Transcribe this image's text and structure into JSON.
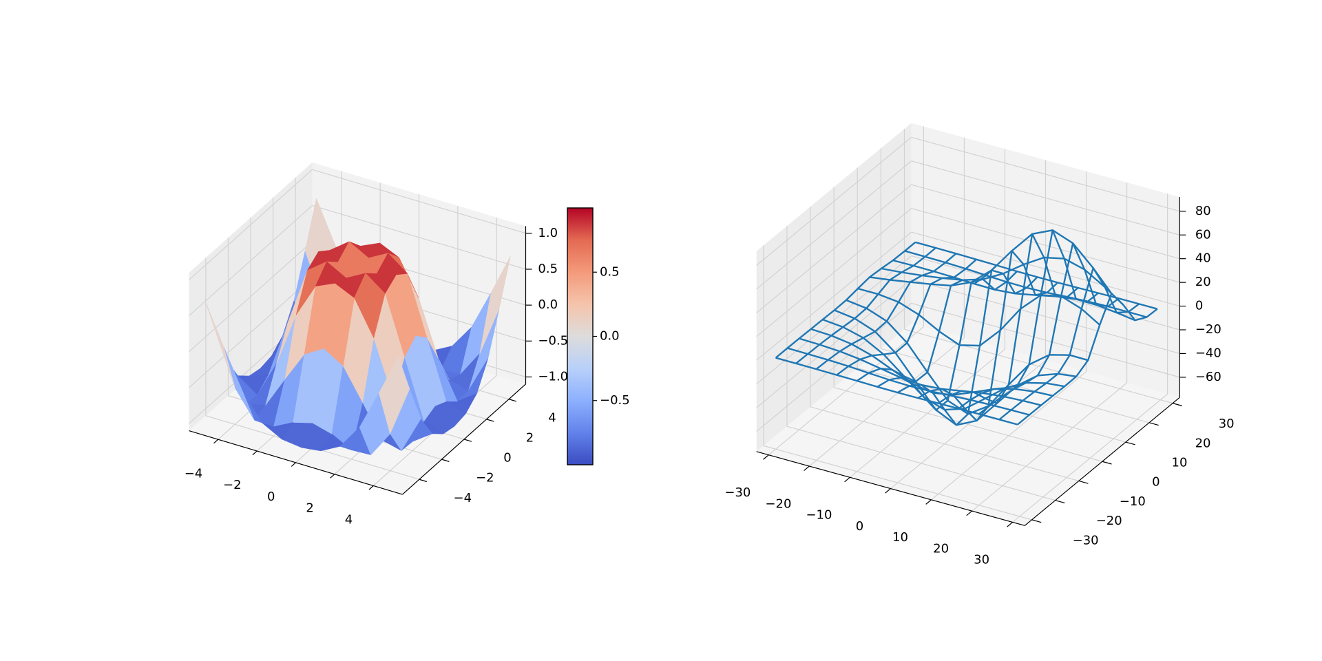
{
  "chart_data": [
    {
      "type": "surface",
      "cmap": "coolwarm",
      "x": [
        -5,
        -4,
        -3,
        -2,
        -1,
        0,
        1,
        2,
        3,
        4,
        5
      ],
      "y": [
        -5,
        -4,
        -3,
        -2,
        -1,
        0,
        1,
        2,
        3,
        4,
        5
      ],
      "z": [
        [
          0.709,
          0.12,
          -0.437,
          -0.782,
          -0.926,
          -0.959,
          -0.926,
          -0.782,
          -0.437,
          0.12,
          0.709
        ],
        [
          0.12,
          -0.586,
          -0.959,
          -0.971,
          -0.831,
          -0.757,
          -0.831,
          -0.971,
          -0.959,
          -0.586,
          0.12
        ],
        [
          -0.437,
          -0.959,
          -0.892,
          -0.448,
          -0.021,
          0.141,
          -0.021,
          -0.448,
          -0.892,
          -0.959,
          -0.437
        ],
        [
          -0.782,
          -0.971,
          -0.448,
          0.308,
          0.787,
          0.909,
          0.787,
          0.308,
          -0.448,
          -0.971,
          -0.782
        ],
        [
          -0.926,
          -0.831,
          -0.021,
          0.787,
          0.988,
          0.841,
          0.988,
          0.787,
          -0.021,
          -0.831,
          -0.926
        ],
        [
          -0.959,
          -0.757,
          0.141,
          0.909,
          0.841,
          0,
          0.841,
          0.909,
          0.141,
          -0.757,
          -0.959
        ],
        [
          -0.926,
          -0.831,
          -0.021,
          0.787,
          0.988,
          0.841,
          0.988,
          0.787,
          -0.021,
          -0.831,
          -0.926
        ],
        [
          -0.782,
          -0.971,
          -0.448,
          0.308,
          0.787,
          0.909,
          0.787,
          0.308,
          -0.448,
          -0.971,
          -0.782
        ],
        [
          -0.437,
          -0.959,
          -0.892,
          -0.448,
          -0.021,
          0.141,
          -0.021,
          -0.448,
          -0.892,
          -0.959,
          -0.437
        ],
        [
          0.12,
          -0.586,
          -0.959,
          -0.971,
          -0.831,
          -0.757,
          -0.831,
          -0.971,
          -0.959,
          -0.586,
          0.12
        ],
        [
          0.709,
          0.12,
          -0.437,
          -0.782,
          -0.926,
          -0.959,
          -0.926,
          -0.782,
          -0.437,
          0.12,
          0.709
        ]
      ],
      "xlim": [
        -5.5,
        5.5
      ],
      "ylim": [
        -5.5,
        5.5
      ],
      "zlim": [
        -1.1,
        1.1
      ],
      "xticks": [
        {
          "value": -4,
          "label": "−4"
        },
        {
          "value": -2,
          "label": "−2"
        },
        0,
        2,
        4
      ],
      "yticks": [
        {
          "value": -4,
          "label": "−4"
        },
        {
          "value": -2,
          "label": "−2"
        },
        0,
        2,
        4
      ],
      "zticks": [
        {
          "value": -1,
          "label": "−1.0"
        },
        {
          "value": -0.5,
          "label": "−0.5"
        },
        {
          "value": 0,
          "label": "0.0"
        },
        0.5,
        {
          "value": 1,
          "label": "1.0"
        }
      ],
      "colorbar": {
        "lim": [
          -1,
          1
        ],
        "ticks": [
          {
            "value": -0.5,
            "label": "−0.5"
          },
          {
            "value": 0,
            "label": "0.0"
          },
          0.5
        ]
      }
    },
    {
      "type": "wireframe",
      "color": "#1f77b4",
      "x": [
        -30,
        -25,
        -20,
        -15,
        -10,
        -5,
        0,
        5,
        10,
        15,
        20,
        25,
        29.5
      ],
      "y": [
        -30,
        -25,
        -20,
        -15,
        -10,
        -5,
        0,
        5,
        10,
        15,
        20,
        25,
        29.5
      ],
      "z": [
        [
          0,
          0,
          -0.1,
          -0.3,
          -0.5,
          -0.8,
          -0.9,
          -0.8,
          -0.5,
          -0.3,
          -0.1,
          0,
          0
        ],
        [
          0,
          -0.2,
          -0.5,
          -1.1,
          -2.1,
          -3.1,
          -3.5,
          -3.1,
          -2.1,
          -1.1,
          -0.5,
          -0.2,
          0
        ],
        [
          -0.1,
          -0.5,
          -1.5,
          -3.5,
          -6.5,
          -9.5,
          -10.8,
          -9.5,
          -6.5,
          -3.5,
          -1.5,
          -0.5,
          -0.1
        ],
        [
          -0.3,
          -1.1,
          -3.5,
          -8.4,
          -15.7,
          -22.8,
          -25.8,
          -22.8,
          -15.7,
          -8.4,
          -3.5,
          -1.1,
          -0.3
        ],
        [
          -0.5,
          -2.1,
          -6.5,
          -15.7,
          -29.3,
          -42.6,
          -48.2,
          -42.6,
          -29.2,
          -15.6,
          -6.5,
          -2.1,
          -0.6
        ],
        [
          -0.8,
          -3.0,
          -9.3,
          -22.5,
          -42.1,
          -61.3,
          -69.3,
          -60.9,
          -41.4,
          -21.7,
          -8.6,
          -2.4,
          -0.4
        ],
        [
          -0.5,
          -2.6,
          -8.8,
          -22.3,
          -42.4,
          -61.5,
          -68.1,
          -56.7,
          -33.9,
          -12.3,
          0.7,
          5.2,
          5.1
        ],
        [
          1.1,
          1.1,
          -0.8,
          -6.8,
          -16.1,
          -23.0,
          -18.7,
          -1.1,
          21.8,
          38.1,
          42.0,
          36.0,
          26.7
        ],
        [
          2.5,
          4.9,
          7.8,
          10.8,
          14.3,
          21.8,
          36.7,
          57.8,
          76.8,
          84.7,
          78.4,
          62.2,
          45.0
        ],
        [
          1.6,
          3.1,
          5.2,
          7.7,
          10.8,
          16.2,
          25.7,
          38.1,
          48.7,
          52.5,
          48.0,
          37.9,
          27.3
        ],
        [
          0.3,
          0.5,
          0.5,
          0.1,
          -0.6,
          -0.8,
          0.7,
          4.1,
          7.8,
          10.1,
          10.0,
          8.2,
          6.0
        ],
        [
          0,
          -0.1,
          -0.3,
          -0.8,
          -1.6,
          -2.4,
          -2.6,
          -2.0,
          -0.9,
          0,
          0.5,
          0.6,
          0.5
        ],
        [
          0,
          0,
          -0.1,
          -0.3,
          -0.6,
          -0.9,
          -1.0,
          -0.9,
          -0.6,
          -0.3,
          -0.1,
          0,
          0
        ]
      ],
      "xlim": [
        -33,
        33
      ],
      "ylim": [
        -33,
        33
      ],
      "zlim": [
        -77,
        92
      ],
      "xticks": [
        {
          "value": -30,
          "label": "−30"
        },
        {
          "value": -20,
          "label": "−20"
        },
        {
          "value": -10,
          "label": "−10"
        },
        0,
        10,
        20,
        30
      ],
      "yticks": [
        {
          "value": -30,
          "label": "−30"
        },
        {
          "value": -20,
          "label": "−20"
        },
        {
          "value": -10,
          "label": "−10"
        },
        0,
        10,
        20,
        30
      ],
      "zticks": [
        {
          "value": -60,
          "label": "−60"
        },
        {
          "value": -40,
          "label": "−40"
        },
        {
          "value": -20,
          "label": "−20"
        },
        0,
        20,
        40,
        60,
        80
      ]
    }
  ]
}
